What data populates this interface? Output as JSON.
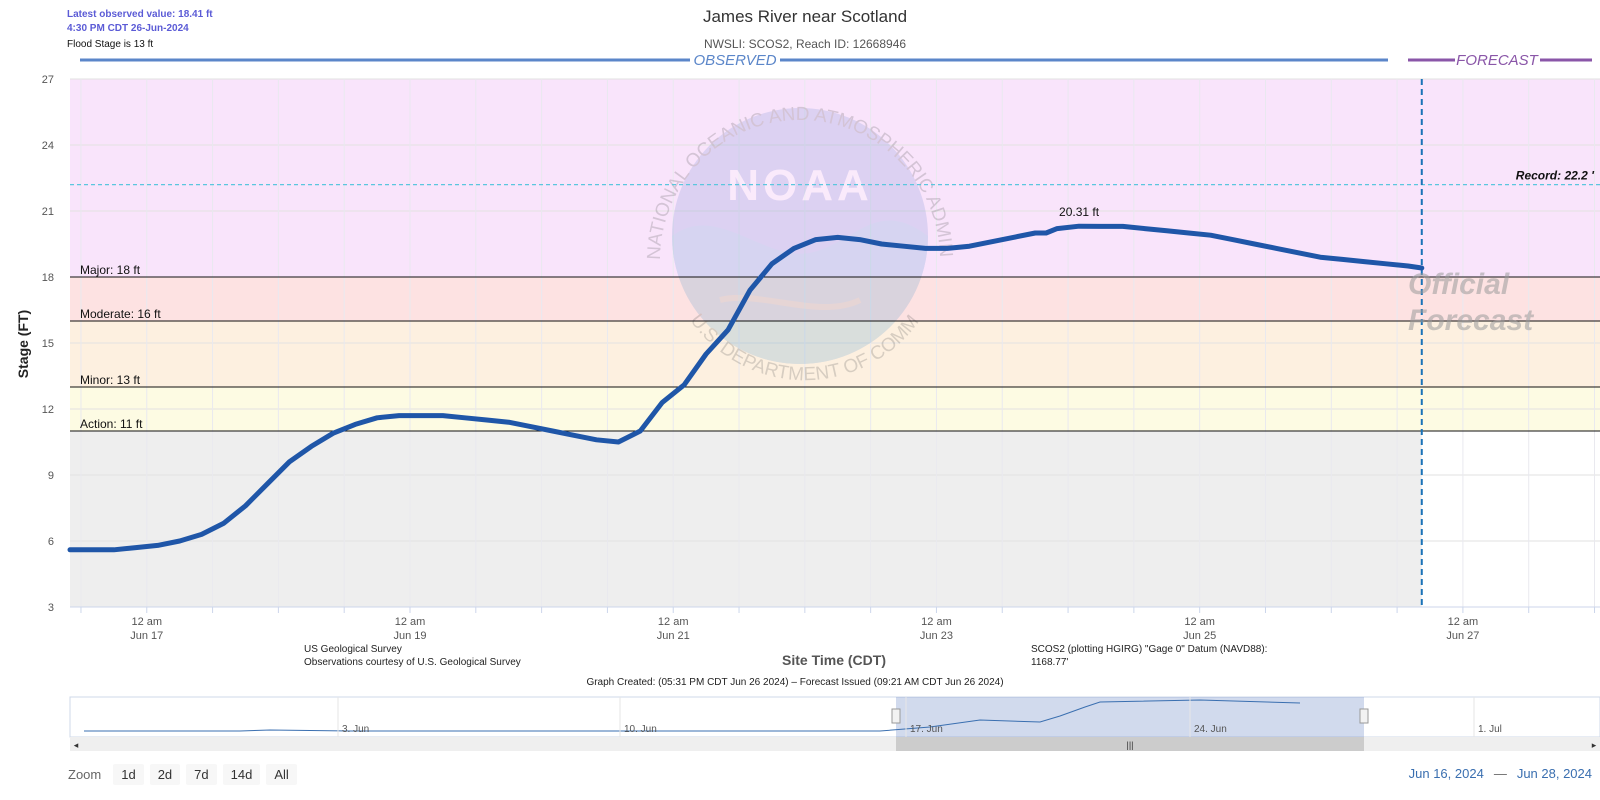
{
  "header": {
    "latest_label": "Latest observed value: 18.41 ft",
    "latest_time": "4:30 PM CDT 26-Jun-2024",
    "flood_stage_note": "Flood Stage is 13 ft",
    "title": "James River near Scotland",
    "subtitle": "NWSLI: SCOS2, Reach ID: 12668946",
    "observed_label": "OBSERVED",
    "forecast_label": "FORECAST",
    "official_forecast_line1": "Official",
    "official_forecast_line2": "Forecast"
  },
  "watermark": {
    "ring_top": "NATIONAL OCEANIC AND ATMOSPHERIC ADMINISTRATION",
    "ring_bottom": "U.S. DEPARTMENT OF COMMERCE",
    "center": "NOAA"
  },
  "footer": {
    "source_line1": "US Geological Survey",
    "source_line2": "Observations courtesy of U.S. Geological Survey",
    "datum_line1": "SCOS2 (plotting HGIRG) \"Gage 0\" Datum (NAVD88):",
    "datum_line2": "1168.77'",
    "graph_created": "Graph Created: (05:31 PM CDT Jun 26 2024) – Forecast Issued (09:21 AM CDT Jun 26 2024)"
  },
  "navigator": {
    "labels": [
      "3. Jun",
      "10. Jun",
      "17. Jun",
      "24. Jun",
      "1. Jul"
    ]
  },
  "zoom": {
    "label": "Zoom",
    "buttons": [
      "1d",
      "2d",
      "7d",
      "14d",
      "All"
    ]
  },
  "range": {
    "from": "Jun 16, 2024",
    "to": "Jun 28, 2024",
    "sep": "—"
  },
  "colors": {
    "series": "#1f56a8",
    "major_band": "#f9e4fb",
    "moderate_band": "#fde2e2",
    "minor_band": "#fdf0e0",
    "action_band": "#fdfbe3",
    "below_band": "#eeeeee",
    "record_line": "#5bc6de",
    "observed_line": "#5b86c9",
    "forecast_line": "#8a56a8"
  },
  "chart_data": {
    "type": "line",
    "title": "James River near Scotland",
    "subtitle": "NWSLI: SCOS2, Reach ID: 12668946",
    "xlabel": "Site Time (CDT)",
    "ylabel": "Stage (FT)",
    "ylim": [
      3,
      27
    ],
    "y_ticks": [
      3,
      6,
      9,
      12,
      15,
      18,
      21,
      24,
      27
    ],
    "xlim": [
      "2024-06-16T10:00",
      "2024-06-28T01:00"
    ],
    "x_ticks": [
      {
        "t": "2024-06-17T00:00",
        "line1": "12 am",
        "line2": "Jun 17"
      },
      {
        "t": "2024-06-19T00:00",
        "line1": "12 am",
        "line2": "Jun 19"
      },
      {
        "t": "2024-06-21T00:00",
        "line1": "12 am",
        "line2": "Jun 21"
      },
      {
        "t": "2024-06-23T00:00",
        "line1": "12 am",
        "line2": "Jun 23"
      },
      {
        "t": "2024-06-25T00:00",
        "line1": "12 am",
        "line2": "Jun 25"
      },
      {
        "t": "2024-06-27T00:00",
        "line1": "12 am",
        "line2": "Jun 27"
      }
    ],
    "grid": true,
    "flood_categories": [
      {
        "name": "Action",
        "label": "Action: 11 ft",
        "value": 11
      },
      {
        "name": "Minor",
        "label": "Minor: 13 ft",
        "value": 13
      },
      {
        "name": "Moderate",
        "label": "Moderate: 16 ft",
        "value": 16
      },
      {
        "name": "Major",
        "label": "Major: 18 ft",
        "value": 18
      }
    ],
    "record": {
      "label": "Record: 22.2 '",
      "value": 22.2
    },
    "peak_annotation": {
      "label": "20.31 ft",
      "x": "2024-06-24T02:00",
      "y": 20.31
    },
    "forecast_start": "2024-06-26T16:30",
    "series": [
      {
        "name": "Observed",
        "x": [
          "2024-06-16T10:00",
          "2024-06-16T14:00",
          "2024-06-16T18:00",
          "2024-06-16T22:00",
          "2024-06-17T02:00",
          "2024-06-17T06:00",
          "2024-06-17T10:00",
          "2024-06-17T14:00",
          "2024-06-17T18:00",
          "2024-06-17T22:00",
          "2024-06-18T02:00",
          "2024-06-18T06:00",
          "2024-06-18T10:00",
          "2024-06-18T14:00",
          "2024-06-18T18:00",
          "2024-06-18T22:00",
          "2024-06-19T02:00",
          "2024-06-19T06:00",
          "2024-06-19T10:00",
          "2024-06-19T14:00",
          "2024-06-19T18:00",
          "2024-06-19T22:00",
          "2024-06-20T02:00",
          "2024-06-20T06:00",
          "2024-06-20T10:00",
          "2024-06-20T14:00",
          "2024-06-20T18:00",
          "2024-06-20T22:00",
          "2024-06-21T02:00",
          "2024-06-21T06:00",
          "2024-06-21T10:00",
          "2024-06-21T14:00",
          "2024-06-21T18:00",
          "2024-06-21T22:00",
          "2024-06-22T02:00",
          "2024-06-22T06:00",
          "2024-06-22T10:00",
          "2024-06-22T14:00",
          "2024-06-22T18:00",
          "2024-06-22T22:00",
          "2024-06-23T02:00",
          "2024-06-23T06:00",
          "2024-06-23T10:00",
          "2024-06-23T14:00",
          "2024-06-23T18:00",
          "2024-06-23T20:00",
          "2024-06-23T22:00",
          "2024-06-24T02:00",
          "2024-06-24T06:00",
          "2024-06-24T10:00",
          "2024-06-24T14:00",
          "2024-06-24T18:00",
          "2024-06-24T22:00",
          "2024-06-25T02:00",
          "2024-06-25T06:00",
          "2024-06-25T10:00",
          "2024-06-25T14:00",
          "2024-06-25T18:00",
          "2024-06-25T22:00",
          "2024-06-26T02:00",
          "2024-06-26T06:00",
          "2024-06-26T10:00",
          "2024-06-26T14:00",
          "2024-06-26T16:30"
        ],
        "y": [
          5.6,
          5.6,
          5.6,
          5.7,
          5.8,
          6.0,
          6.3,
          6.8,
          7.6,
          8.6,
          9.6,
          10.3,
          10.9,
          11.3,
          11.6,
          11.7,
          11.7,
          11.7,
          11.6,
          11.5,
          11.4,
          11.2,
          11.0,
          10.8,
          10.6,
          10.5,
          11.0,
          12.3,
          13.1,
          14.5,
          15.6,
          17.4,
          18.6,
          19.3,
          19.7,
          19.8,
          19.7,
          19.5,
          19.4,
          19.3,
          19.3,
          19.4,
          19.6,
          19.8,
          20.0,
          20.0,
          20.2,
          20.31,
          20.3,
          20.3,
          20.2,
          20.1,
          20.0,
          19.9,
          19.7,
          19.5,
          19.3,
          19.1,
          18.9,
          18.8,
          18.7,
          18.6,
          18.5,
          18.41
        ]
      }
    ]
  }
}
